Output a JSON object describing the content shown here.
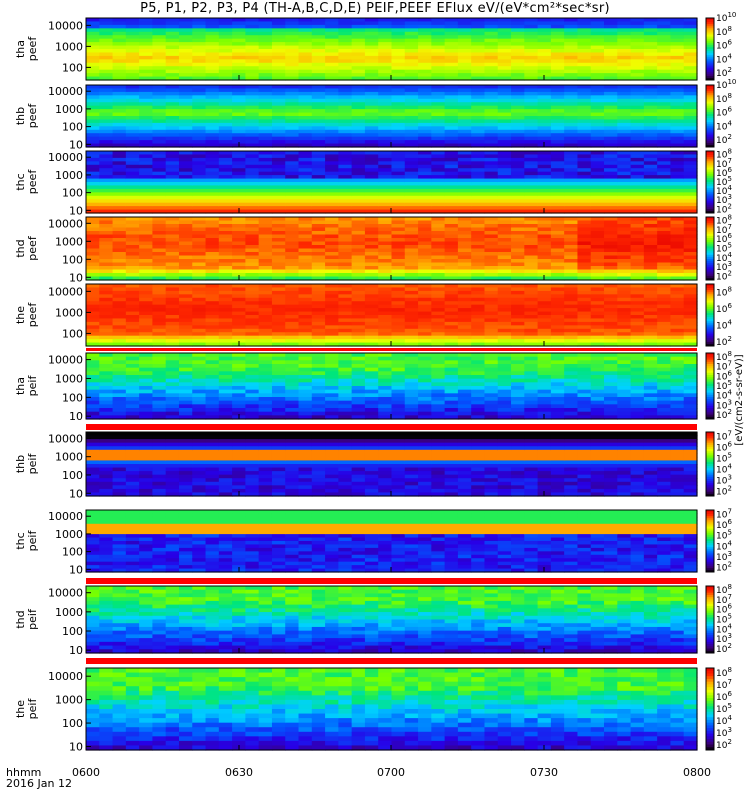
{
  "title": "P5, P1, P2, P3, P4 (TH-A,B,C,D,E) PEIF,PEEF EFlux eV/(eV*cm²*sec*sr)",
  "x_axis_label_line1": "hhmm",
  "x_axis_label_line2": "2016 Jan 12",
  "colorbar_unit_label": "[eV/(cm2-s-sr-eV)]",
  "chart_data": {
    "type": "heatmap",
    "xlabel": "hhmm",
    "date": "2016 Jan 12",
    "xlim": [
      "0600",
      "0800"
    ],
    "x_ticks": [
      "0600",
      "0630",
      "0700",
      "0730",
      "0800"
    ],
    "y_scale": "log",
    "panels": [
      {
        "ylabel": [
          "tha",
          "peef"
        ],
        "y_ticks": [
          "100",
          "1000",
          "10000"
        ],
        "cbar_ticks": [
          "10^2",
          "10^4",
          "10^6",
          "10^8",
          "10^10"
        ],
        "cbar_range": [
          1,
          10
        ],
        "profile": "a_ee"
      },
      {
        "ylabel": [
          "thb",
          "peef"
        ],
        "y_ticks": [
          "10",
          "100",
          "1000",
          "10000"
        ],
        "cbar_ticks": [
          "10^2",
          "10^4",
          "10^6",
          "10^8",
          "10^10"
        ],
        "cbar_range": [
          1,
          10
        ],
        "profile": "b_ee"
      },
      {
        "ylabel": [
          "thc",
          "peef"
        ],
        "y_ticks": [
          "10",
          "100",
          "1000",
          "10000"
        ],
        "cbar_ticks": [
          "10^2",
          "10^3",
          "10^4",
          "10^5",
          "10^6",
          "10^7",
          "10^8"
        ],
        "cbar_range": [
          1.6,
          8.4
        ],
        "profile": "c_ee"
      },
      {
        "ylabel": [
          "thd",
          "peef"
        ],
        "y_ticks": [
          "10",
          "100",
          "1000",
          "10000"
        ],
        "cbar_ticks": [
          "10^2",
          "10^3",
          "10^4",
          "10^5",
          "10^6",
          "10^7",
          "10^8"
        ],
        "cbar_range": [
          1.6,
          8.4
        ],
        "profile": "d_ee"
      },
      {
        "ylabel": [
          "the",
          "peef"
        ],
        "y_ticks": [
          "100",
          "1000",
          "10000"
        ],
        "cbar_ticks": [
          "10^2",
          "10^4",
          "10^6",
          "10^8"
        ],
        "cbar_range": [
          1.5,
          9
        ],
        "profile": "e_ee"
      },
      {
        "ylabel": [
          "tha",
          "peif"
        ],
        "y_ticks": [
          "10",
          "100",
          "1000",
          "10000"
        ],
        "cbar_ticks": [
          "10^2",
          "10^3",
          "10^4",
          "10^5",
          "10^6",
          "10^7",
          "10^8"
        ],
        "cbar_range": [
          1.6,
          8.4
        ],
        "profile": "a_ei"
      },
      {
        "ylabel": [
          "thb",
          "peif"
        ],
        "y_ticks": [
          "10",
          "100",
          "1000",
          "10000"
        ],
        "cbar_ticks": [
          "10^2",
          "10^3",
          "10^4",
          "10^5",
          "10^6",
          "10^7"
        ],
        "cbar_range": [
          1.6,
          7.4
        ],
        "profile": "b_ei"
      },
      {
        "ylabel": [
          "thc",
          "peif"
        ],
        "y_ticks": [
          "10",
          "100",
          "1000",
          "10000"
        ],
        "cbar_ticks": [
          "10^2",
          "10^3",
          "10^4",
          "10^5",
          "10^6",
          "10^7"
        ],
        "cbar_range": [
          1.6,
          7.4
        ],
        "profile": "c_ei"
      },
      {
        "ylabel": [
          "thd",
          "peif"
        ],
        "y_ticks": [
          "10",
          "100",
          "1000",
          "10000"
        ],
        "cbar_ticks": [
          "10^2",
          "10^3",
          "10^4",
          "10^5",
          "10^6",
          "10^7",
          "10^8"
        ],
        "cbar_range": [
          1.6,
          8.4
        ],
        "profile": "d_ei"
      },
      {
        "ylabel": [
          "the",
          "peif"
        ],
        "y_ticks": [
          "10",
          "100",
          "1000",
          "10000"
        ],
        "cbar_ticks": [
          "10^2",
          "10^3",
          "10^4",
          "10^5",
          "10^6",
          "10^7",
          "10^8"
        ],
        "cbar_range": [
          1.6,
          8.4
        ],
        "profile": "e_ei"
      }
    ]
  }
}
